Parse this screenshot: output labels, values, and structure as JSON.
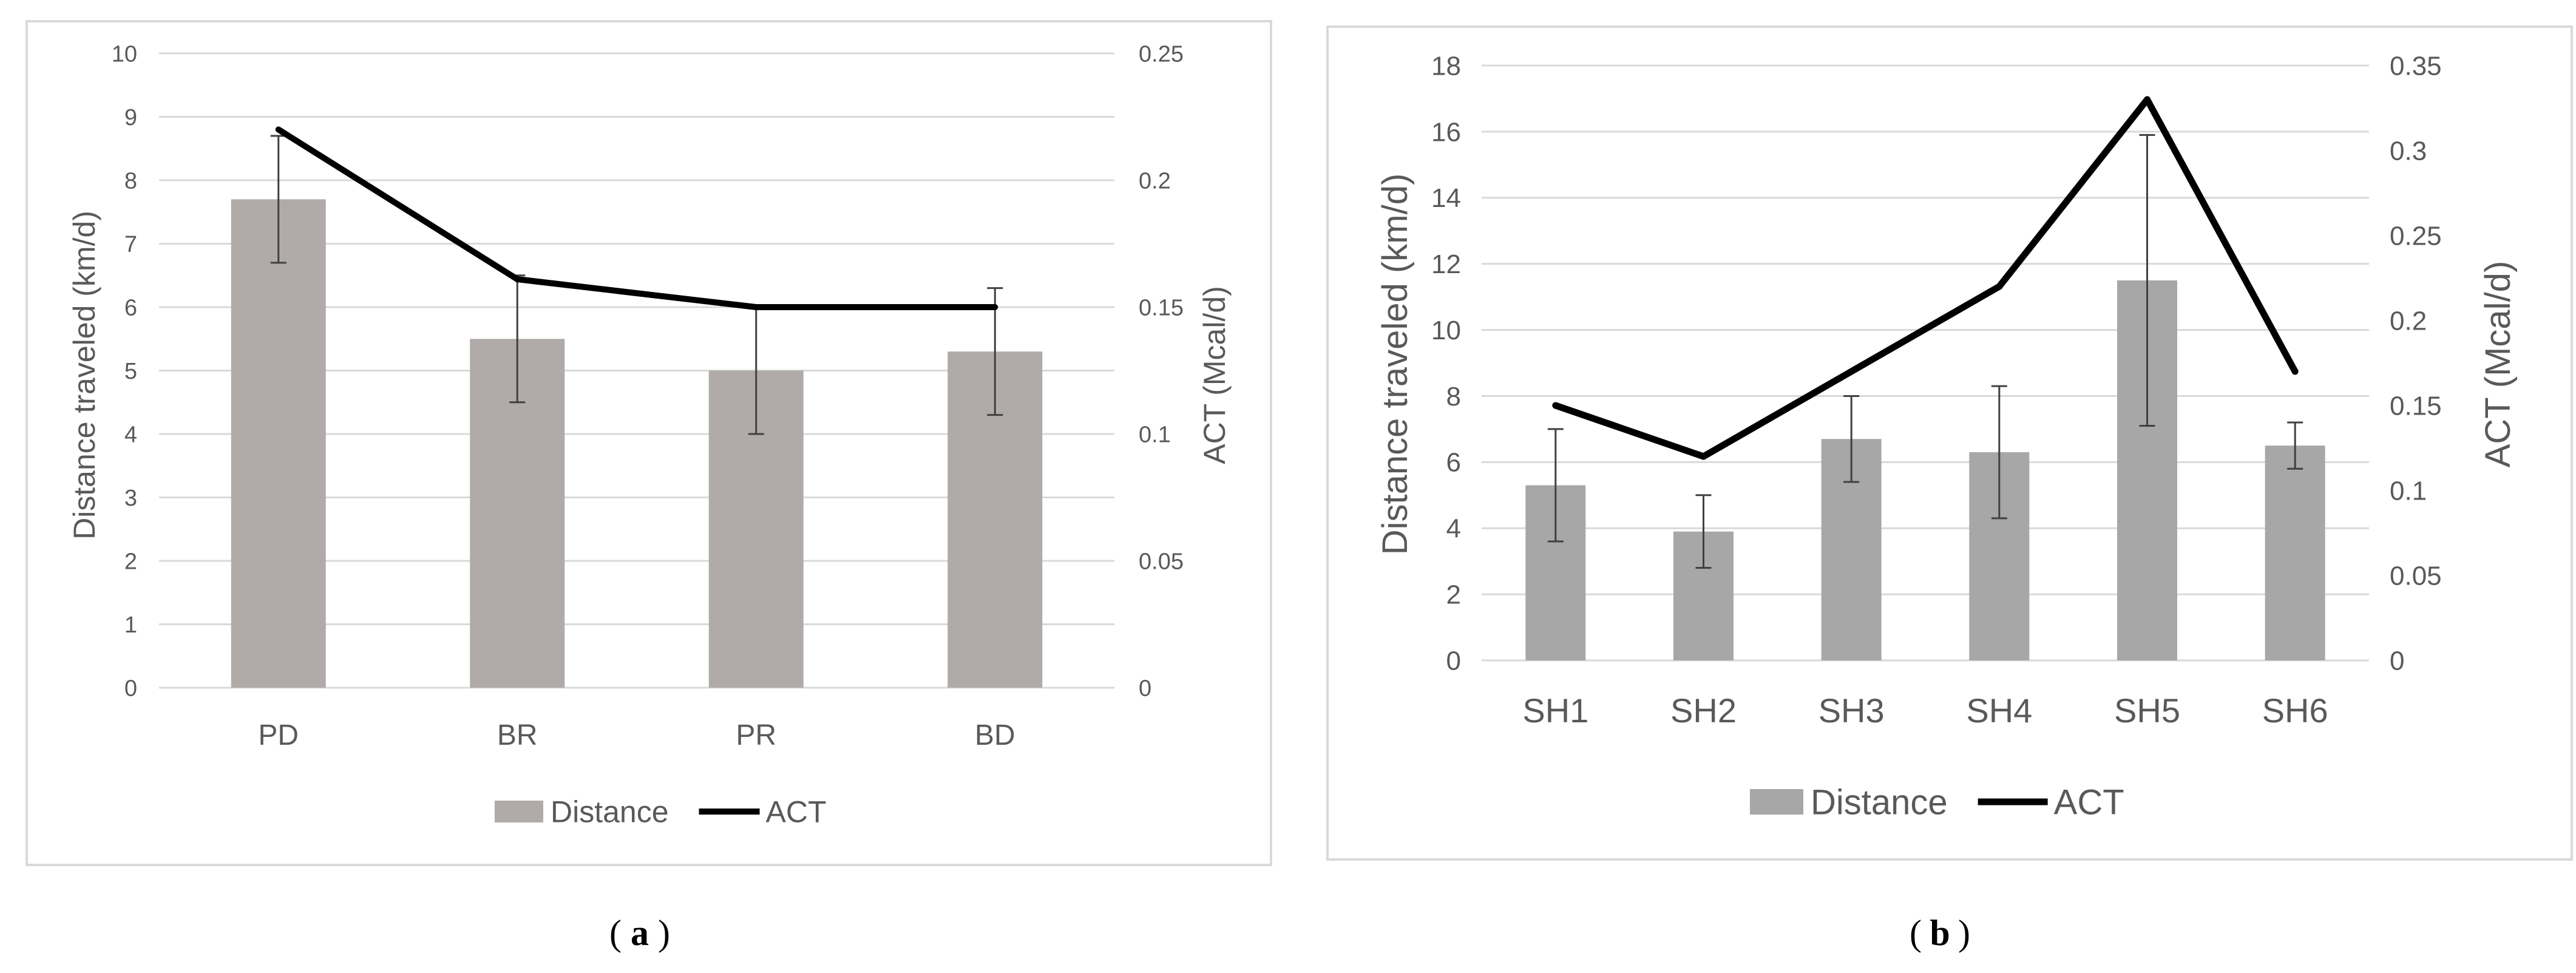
{
  "charts": [
    {
      "id": "a",
      "caption": "a",
      "chart_data": {
        "type": "bar",
        "categories": [
          "PD",
          "BR",
          "PR",
          "BD"
        ],
        "series": [
          {
            "name": "Distance",
            "kind": "bar",
            "axis": "left",
            "values": [
              7.7,
              5.5,
              5.0,
              5.3
            ],
            "errors": [
              1.0,
              1.0,
              1.0,
              1.0
            ]
          },
          {
            "name": "ACT",
            "kind": "line",
            "axis": "right",
            "values": [
              0.22,
              0.161,
              0.15,
              0.15
            ]
          }
        ],
        "ylabel": "Distance traveled (km/d)",
        "y2label": "ACT (Mcal/d)",
        "ylim": [
          0,
          10
        ],
        "y2lim": [
          0,
          0.25
        ],
        "yticks": [
          "0",
          "1",
          "2",
          "3",
          "4",
          "5",
          "6",
          "7",
          "8",
          "9",
          "10"
        ],
        "y2ticks": [
          "0",
          "0.05",
          "0.1",
          "0.15",
          "0.2",
          "0.25"
        ],
        "legend": [
          "Distance",
          "ACT"
        ],
        "legend_position": "bottom",
        "grid": true
      }
    },
    {
      "id": "b",
      "caption": "b",
      "chart_data": {
        "type": "bar",
        "categories": [
          "SH1",
          "SH2",
          "SH3",
          "SH4",
          "SH5",
          "SH6"
        ],
        "series": [
          {
            "name": "Distance",
            "kind": "bar",
            "axis": "left",
            "values": [
              5.3,
              3.9,
              6.7,
              6.3,
              11.5,
              6.5
            ],
            "errors": [
              1.7,
              1.1,
              1.3,
              2.0,
              4.4,
              0.7
            ]
          },
          {
            "name": "ACT",
            "kind": "line",
            "axis": "right",
            "values": [
              0.15,
              0.12,
              0.17,
              0.22,
              0.33,
              0.17
            ]
          }
        ],
        "ylabel": "Distance traveled (km/d)",
        "y2label": "ACT (Mcal/d)",
        "ylim": [
          0,
          18
        ],
        "y2lim": [
          0,
          0.35
        ],
        "yticks": [
          "0",
          "2",
          "4",
          "6",
          "8",
          "10",
          "12",
          "14",
          "16",
          "18"
        ],
        "y2ticks": [
          "0",
          "0.05",
          "0.1",
          "0.15",
          "0.2",
          "0.25",
          "0.3",
          "0.35"
        ],
        "legend": [
          "Distance",
          "ACT"
        ],
        "legend_position": "bottom",
        "grid": true
      }
    }
  ],
  "colors": {
    "bar_a": "#b0aba8",
    "bar_b": "#a7a7a7",
    "line": "#000000",
    "grid": "#d9d9d9",
    "frame": "#d9d9d9",
    "tick_text": "#595959",
    "errbar": "#404040"
  }
}
